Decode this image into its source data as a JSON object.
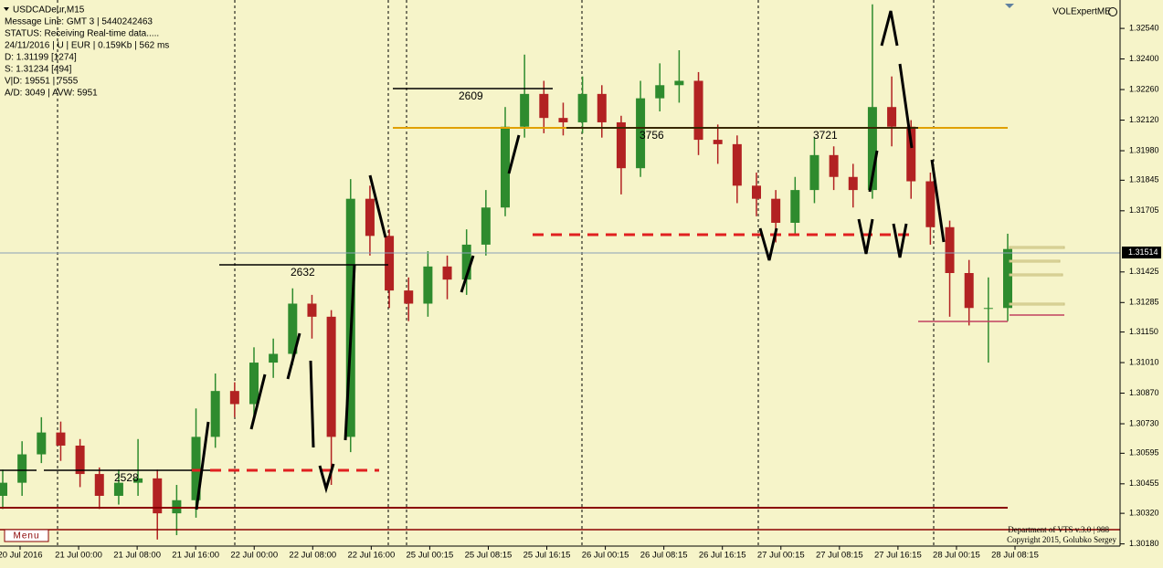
{
  "chart_data": {
    "type": "candlestick",
    "title": "USDCADeur,M15",
    "info_lines": [
      "Message Line: GMT 3 | 5440242463",
      "STATUS:  Receiving Real-time data.....",
      "24/11/2016 | U | EUR | 0.159Kb | 562 ms",
      "D: 1.31199  [1274]",
      "S: 1.31234  [494]",
      "V|D: 19551 | 7555",
      "A/D: 3049 | AVW: 5951"
    ],
    "indicator": "VOLExpertME",
    "menu": "Menu",
    "footer": [
      "Department of VTS  v.3.0 | 988",
      "Copyright 2015, Golubko Sergey"
    ],
    "annotations": [
      "2609",
      "2632",
      "2528",
      "3756",
      "3721"
    ],
    "last_price": 1.31514,
    "categories": [
      "20 Jul 2016",
      "21 Jul 00:00",
      "21 Jul 08:00",
      "21 Jul 16:00",
      "22 Jul 00:00",
      "22 Jul 08:00",
      "22 Jul 16:00",
      "25 Jul 00:15",
      "25 Jul 08:15",
      "25 Jul 16:15",
      "26 Jul 00:15",
      "26 Jul 08:15",
      "26 Jul 16:15",
      "27 Jul 00:15",
      "27 Jul 08:15",
      "27 Jul 16:15",
      "28 Jul 00:15",
      "28 Jul 08:15"
    ],
    "open": [
      1.304,
      1.3046,
      1.3059,
      1.3069,
      1.3063,
      1.305,
      1.304,
      1.3046,
      1.3048,
      1.3032,
      1.3038,
      1.3067,
      1.3088,
      1.3082,
      1.3101,
      1.3105,
      1.3128,
      1.3122,
      1.3067,
      1.3176,
      1.3159,
      1.3134,
      1.3128,
      1.3145,
      1.3139,
      1.3155,
      1.3172,
      1.3209,
      1.3224,
      1.3213,
      1.3211,
      1.3224,
      1.3211,
      1.319,
      1.3222,
      1.3228,
      1.323,
      1.3203,
      1.3201,
      1.3182,
      1.3176,
      1.3165,
      1.318,
      1.3196,
      1.3186,
      1.318,
      1.3218,
      1.3209,
      1.3184,
      1.3163,
      1.3142,
      1.3126,
      1.3126
    ],
    "high": [
      1.3052,
      1.3065,
      1.3076,
      1.3074,
      1.3066,
      1.3053,
      1.3052,
      1.3066,
      1.3052,
      1.3045,
      1.308,
      1.3096,
      1.3092,
      1.3108,
      1.3112,
      1.3135,
      1.3132,
      1.3125,
      1.3185,
      1.3182,
      1.3162,
      1.314,
      1.3152,
      1.315,
      1.3162,
      1.318,
      1.3218,
      1.3242,
      1.323,
      1.322,
      1.3232,
      1.3228,
      1.3214,
      1.323,
      1.3238,
      1.3244,
      1.3234,
      1.321,
      1.3205,
      1.3188,
      1.318,
      1.3186,
      1.3204,
      1.32,
      1.3192,
      1.3265,
      1.3232,
      1.3212,
      1.3188,
      1.3166,
      1.3148,
      1.314,
      1.316
    ],
    "low": [
      1.3034,
      1.304,
      1.3055,
      1.3056,
      1.3044,
      1.3034,
      1.3036,
      1.304,
      1.302,
      1.3022,
      1.303,
      1.3062,
      1.3076,
      1.3076,
      1.3094,
      1.31,
      1.3112,
      1.3045,
      1.306,
      1.315,
      1.3126,
      1.312,
      1.3122,
      1.313,
      1.3132,
      1.315,
      1.3168,
      1.3204,
      1.3206,
      1.3205,
      1.3206,
      1.3204,
      1.3178,
      1.3186,
      1.3216,
      1.322,
      1.3196,
      1.3192,
      1.3174,
      1.3168,
      1.3156,
      1.316,
      1.3174,
      1.318,
      1.3172,
      1.3176,
      1.32,
      1.3176,
      1.3155,
      1.3122,
      1.3118,
      1.3101,
      1.312
    ],
    "close": [
      1.3046,
      1.3059,
      1.3069,
      1.3063,
      1.305,
      1.304,
      1.3046,
      1.3048,
      1.3032,
      1.3038,
      1.3067,
      1.3088,
      1.3082,
      1.3101,
      1.3105,
      1.3128,
      1.3122,
      1.3067,
      1.3176,
      1.3159,
      1.3134,
      1.3128,
      1.3145,
      1.3139,
      1.3155,
      1.3172,
      1.3209,
      1.3224,
      1.3213,
      1.3211,
      1.3224,
      1.3211,
      1.319,
      1.3222,
      1.3228,
      1.323,
      1.3203,
      1.3201,
      1.3182,
      1.3176,
      1.3165,
      1.318,
      1.3196,
      1.3186,
      1.318,
      1.3218,
      1.3209,
      1.3184,
      1.3163,
      1.3142,
      1.3126,
      1.3126,
      1.3153
    ],
    "up_color": "#2e8b2e",
    "down_color": "#b22222",
    "ylim": [
      1.3017,
      1.3267
    ],
    "yticks": [
      {
        "value": 1.3254,
        "label": "1.32540"
      },
      {
        "value": 1.324,
        "label": "1.32400"
      },
      {
        "value": 1.3226,
        "label": "1.32260"
      },
      {
        "value": 1.3212,
        "label": "1.32120"
      },
      {
        "value": 1.3198,
        "label": "1.31980"
      },
      {
        "value": 1.31845,
        "label": "1.31845"
      },
      {
        "value": 1.31705,
        "label": "1.31705"
      },
      {
        "value": 1.31425,
        "label": "1.31425"
      },
      {
        "value": 1.31285,
        "label": "1.31285"
      },
      {
        "value": 1.3115,
        "label": "1.31150"
      },
      {
        "value": 1.3101,
        "label": "1.31010"
      },
      {
        "value": 1.3087,
        "label": "1.30870"
      },
      {
        "value": 1.3073,
        "label": "1.30730"
      },
      {
        "value": 1.30595,
        "label": "1.30595"
      },
      {
        "value": 1.30455,
        "label": "1.30455"
      },
      {
        "value": 1.3032,
        "label": "1.30320"
      },
      {
        "value": 1.3018,
        "label": "1.30180"
      }
    ]
  }
}
